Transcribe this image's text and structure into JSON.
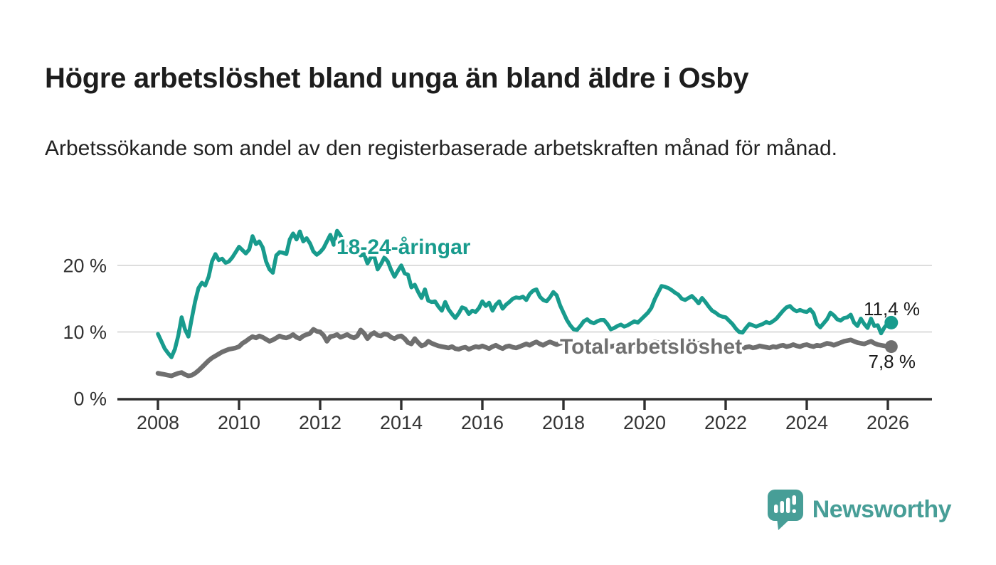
{
  "header": {
    "title": "Högre arbetslöshet bland unga än bland äldre i Osby",
    "subtitle": "Arbetssökande som andel av den registerbaserade arbetskraften månad för månad."
  },
  "chart_data": {
    "type": "line",
    "title": "Högre arbetslöshet bland unga än bland äldre i Osby",
    "x_unit": "month",
    "x_start": "2008-01",
    "x_end": "2026-02",
    "x_tick_years": [
      2008,
      2010,
      2012,
      2014,
      2016,
      2018,
      2020,
      2022,
      2024,
      2026
    ],
    "y_ticks": [
      {
        "value": 0,
        "label": "0 %"
      },
      {
        "value": 10,
        "label": "10 %"
      },
      {
        "value": 20,
        "label": "20 %"
      }
    ],
    "ylim": [
      0,
      26.5
    ],
    "grid": "horizontal",
    "legend_position": "inline-labels",
    "series": [
      {
        "name": "18-24-åringar",
        "color": "#189b8d",
        "end_label": "11,4 %",
        "end_value": 11.4,
        "values": [
          9.7,
          8.6,
          7.5,
          6.8,
          6.2,
          7.4,
          9.4,
          12.2,
          10.4,
          9.3,
          12.0,
          14.6,
          16.6,
          17.4,
          17.0,
          18.3,
          20.6,
          21.7,
          20.8,
          21.0,
          20.4,
          20.6,
          21.2,
          22.0,
          22.8,
          22.3,
          21.8,
          22.4,
          24.4,
          23.2,
          23.6,
          22.7,
          20.6,
          19.4,
          18.9,
          21.5,
          22.0,
          21.9,
          21.7,
          23.9,
          24.8,
          23.9,
          25.1,
          23.6,
          24.1,
          23.3,
          22.1,
          21.6,
          22.0,
          22.6,
          23.6,
          24.6,
          23.1,
          25.2,
          24.5,
          23.4,
          22.9,
          22.1,
          21.7,
          21.9,
          21.5,
          21.7,
          20.3,
          21.2,
          21.4,
          19.4,
          20.2,
          21.2,
          20.6,
          19.3,
          18.3,
          19.2,
          20.0,
          18.8,
          18.6,
          16.7,
          17.1,
          16.0,
          15.1,
          16.4,
          14.7,
          14.5,
          14.6,
          13.8,
          13.2,
          14.5,
          13.4,
          12.7,
          12.1,
          12.8,
          13.7,
          13.5,
          12.7,
          13.2,
          13.0,
          13.6,
          14.6,
          13.9,
          14.4,
          13.2,
          14.1,
          14.6,
          13.5,
          14.1,
          14.5,
          15.0,
          15.2,
          15.1,
          15.3,
          14.8,
          15.7,
          16.2,
          16.4,
          15.3,
          14.8,
          14.6,
          15.2,
          16.0,
          15.5,
          14.0,
          12.9,
          11.8,
          11.0,
          10.4,
          10.3,
          10.9,
          11.6,
          11.9,
          11.5,
          11.3,
          11.6,
          11.8,
          11.8,
          11.2,
          10.4,
          10.6,
          10.9,
          11.1,
          10.8,
          11.0,
          11.3,
          11.6,
          11.4,
          11.9,
          12.4,
          12.9,
          13.6,
          14.9,
          15.9,
          16.9,
          16.8,
          16.6,
          16.3,
          15.9,
          15.6,
          15.0,
          14.8,
          15.1,
          15.4,
          14.9,
          14.3,
          15.1,
          14.5,
          13.8,
          13.2,
          12.9,
          12.5,
          12.3,
          12.2,
          11.7,
          11.2,
          10.5,
          10.0,
          9.9,
          10.6,
          11.2,
          11.0,
          10.8,
          11.0,
          11.2,
          11.5,
          11.3,
          11.6,
          12.0,
          12.6,
          13.2,
          13.7,
          13.9,
          13.4,
          13.1,
          13.3,
          13.1,
          13.0,
          13.4,
          12.8,
          11.2,
          10.7,
          11.3,
          11.9,
          12.9,
          12.5,
          11.9,
          11.7,
          12.1,
          12.2,
          12.6,
          11.4,
          10.9,
          12.0,
          11.2,
          10.6,
          12.0,
          10.9,
          11.0,
          9.8,
          10.7,
          11.3,
          11.4
        ]
      },
      {
        "name": "Total arbetslöshet",
        "color": "#6f6f6f",
        "end_label": "7,8 %",
        "end_value": 7.8,
        "values": [
          3.8,
          3.7,
          3.6,
          3.5,
          3.4,
          3.6,
          3.8,
          3.9,
          3.6,
          3.4,
          3.5,
          3.8,
          4.2,
          4.7,
          5.2,
          5.7,
          6.1,
          6.4,
          6.7,
          7.0,
          7.2,
          7.4,
          7.5,
          7.6,
          7.8,
          8.3,
          8.6,
          9.0,
          9.3,
          9.1,
          9.4,
          9.2,
          8.9,
          8.6,
          8.8,
          9.1,
          9.4,
          9.2,
          9.1,
          9.3,
          9.6,
          9.2,
          9.0,
          9.4,
          9.6,
          9.8,
          10.4,
          10.1,
          10.0,
          9.5,
          8.6,
          9.3,
          9.4,
          9.6,
          9.2,
          9.4,
          9.6,
          9.3,
          9.1,
          9.4,
          10.3,
          9.8,
          9.0,
          9.6,
          9.9,
          9.5,
          9.4,
          9.7,
          9.6,
          9.2,
          9.0,
          9.3,
          9.4,
          9.0,
          8.4,
          8.2,
          9.0,
          8.4,
          7.9,
          8.1,
          8.6,
          8.3,
          8.1,
          7.9,
          7.8,
          7.7,
          7.6,
          7.8,
          7.5,
          7.4,
          7.6,
          7.7,
          7.4,
          7.6,
          7.8,
          7.7,
          7.9,
          7.7,
          7.5,
          7.8,
          8.0,
          7.7,
          7.5,
          7.8,
          7.9,
          7.7,
          7.6,
          7.8,
          8.0,
          8.2,
          8.0,
          8.3,
          8.5,
          8.2,
          8.0,
          8.3,
          8.5,
          8.3,
          8.1,
          8.3,
          8.4,
          8.2,
          8.0,
          8.1,
          8.3,
          8.1,
          7.9,
          8.1,
          8.2,
          8.0,
          7.9,
          8.0,
          8.1,
          8.0,
          7.8,
          7.9,
          8.1,
          7.9,
          7.8,
          8.0,
          8.1,
          7.9,
          7.8,
          7.9,
          8.0,
          8.1,
          8.3,
          8.5,
          8.4,
          8.2,
          8.3,
          8.5,
          8.3,
          8.2,
          8.0,
          8.2,
          8.3,
          8.5,
          8.3,
          8.1,
          8.3,
          8.4,
          8.2,
          8.0,
          8.2,
          8.3,
          8.1,
          7.9,
          8.0,
          7.8,
          7.7,
          7.8,
          7.6,
          7.5,
          7.7,
          7.8,
          7.6,
          7.7,
          7.9,
          7.8,
          7.7,
          7.6,
          7.8,
          7.7,
          7.9,
          8.0,
          7.8,
          7.9,
          8.1,
          7.9,
          7.8,
          8.0,
          8.1,
          7.9,
          7.8,
          8.0,
          7.9,
          8.1,
          8.3,
          8.2,
          8.0,
          8.2,
          8.4,
          8.6,
          8.7,
          8.8,
          8.6,
          8.4,
          8.3,
          8.2,
          8.4,
          8.6,
          8.3,
          8.1,
          8.0,
          7.9,
          7.8,
          7.8
        ]
      }
    ],
    "colors": {
      "grid": "#d8d8d8",
      "axis": "#2f2f2f",
      "axis_text": "#333333",
      "value_text": "#1a1a1a"
    }
  },
  "branding": {
    "name": "Newsworthy",
    "color": "#479e97",
    "logo": "speech-bubble-bar-chart-icon"
  }
}
